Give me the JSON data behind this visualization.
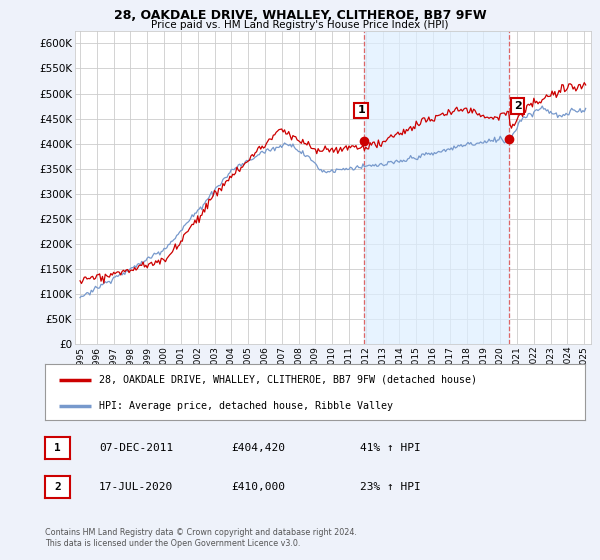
{
  "title": "28, OAKDALE DRIVE, WHALLEY, CLITHEROE, BB7 9FW",
  "subtitle": "Price paid vs. HM Land Registry's House Price Index (HPI)",
  "legend_entry1": "28, OAKDALE DRIVE, WHALLEY, CLITHEROE, BB7 9FW (detached house)",
  "legend_entry2": "HPI: Average price, detached house, Ribble Valley",
  "annotation1_label": "1",
  "annotation1_date": "07-DEC-2011",
  "annotation1_price": "£404,420",
  "annotation1_change": "41% ↑ HPI",
  "annotation2_label": "2",
  "annotation2_date": "17-JUL-2020",
  "annotation2_price": "£410,000",
  "annotation2_change": "23% ↑ HPI",
  "footer1": "Contains HM Land Registry data © Crown copyright and database right 2024.",
  "footer2": "This data is licensed under the Open Government Licence v3.0.",
  "ylim": [
    0,
    625000
  ],
  "yticks": [
    0,
    50000,
    100000,
    150000,
    200000,
    250000,
    300000,
    350000,
    400000,
    450000,
    500000,
    550000,
    600000
  ],
  "xticks": [
    1995,
    1996,
    1997,
    1998,
    1999,
    2000,
    2001,
    2002,
    2003,
    2004,
    2005,
    2006,
    2007,
    2008,
    2009,
    2010,
    2011,
    2012,
    2013,
    2014,
    2015,
    2016,
    2017,
    2018,
    2019,
    2020,
    2021,
    2022,
    2023,
    2024,
    2025
  ],
  "color_red": "#cc0000",
  "color_blue": "#7799cc",
  "color_fill": "#ddeeff",
  "color_vline": "#dd6666",
  "bg_color": "#eef2fa",
  "plot_bg": "#ffffff",
  "grid_color": "#cccccc",
  "ann1_x": 2011.92,
  "ann1_y": 404420,
  "ann2_x": 2020.54,
  "ann2_y": 410000,
  "vline1_x": 2011.92,
  "vline2_x": 2020.54
}
